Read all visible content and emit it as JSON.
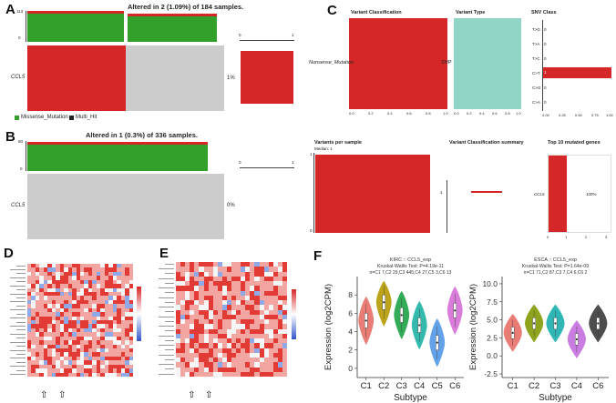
{
  "panels": {
    "A": {
      "letter": "A",
      "title": "Altered in 2 (1.09%) of 184 samples.",
      "ytick_top": "113",
      "ytick_bottom": "0",
      "gene": "CCL5",
      "pct": "1%",
      "scale_min": "0",
      "scale_max": "1",
      "legend": [
        {
          "label": "Missense_Mutation",
          "color": "#33a02c"
        },
        {
          "label": "Multi_Hit",
          "color": "#222222"
        }
      ]
    },
    "B": {
      "letter": "B",
      "title": "Altered in 1 (0.3%) of 336 samples.",
      "ytick_top": "80",
      "ytick_bottom": "0",
      "gene": "CCL5",
      "pct": "0%",
      "scale_min": "0",
      "scale_max": "1"
    },
    "C": {
      "letter": "C",
      "variant_classification": "Variant Classification",
      "variant_type": "Variant Type",
      "snv_class": "SNV Class",
      "row_label_1": "Nonsense_Mutation",
      "row_label_2": "SNP",
      "snv_labels": [
        "T>G",
        "T>A",
        "T>C",
        "C>T",
        "C>G",
        "C>A"
      ],
      "snv_values": [
        "0",
        "0",
        "0",
        "1",
        "0",
        "0"
      ],
      "x_ticks": [
        "0.0",
        "0.2",
        "0.4",
        "0.6",
        "0.8",
        "1.0"
      ],
      "snv_ticks": [
        "0.00",
        "0.25",
        "0.50",
        "0.75",
        "1.00"
      ],
      "variants_per_sample": "Variants per sample",
      "median": "Median: 1",
      "vc_summary": "Variant Classification summary",
      "top10": "Top 10 mutated genes",
      "top10_gene": "CCL5",
      "top10_value": "100%",
      "vps_y_top": "1",
      "vps_y_bottom": "0",
      "vcs_tick": "1",
      "top10_ticks": [
        "0",
        "1",
        "2",
        "3"
      ]
    },
    "D": {
      "letter": "D"
    },
    "E": {
      "letter": "E"
    },
    "F": {
      "letter": "F"
    }
  },
  "chart_data": [
    {
      "type": "violin",
      "title": "KIRC :: CCL5_exp",
      "subtitle": "Kruskal-Wallis Test: P=4.19e-11",
      "counts": "n=C1 7,C2 29,C3 445,C4 27,C5 3,C6 13",
      "xlabel": "Subtype",
      "ylabel": "Expression (log2CPM)",
      "categories": [
        "C1",
        "C2",
        "C3",
        "C4",
        "C5",
        "C6"
      ],
      "medians": [
        5.2,
        7.2,
        5.8,
        4.7,
        2.8,
        6.3
      ],
      "colors": [
        "#e8776e",
        "#b8a010",
        "#2aa84f",
        "#2ab7a8",
        "#5b9ee8",
        "#d977d9"
      ],
      "ylim": [
        -1,
        10
      ],
      "yticks": [
        "0",
        "2",
        "4",
        "6",
        "8"
      ]
    },
    {
      "type": "violin",
      "title": "ESCA :: CCL5_exp",
      "subtitle": "Kruskal-Wallis Test: P=1.64e-09",
      "counts": "n=C1 71,C2 87,C3 7,C4 6,C6 2",
      "xlabel": "Subtype",
      "ylabel": "Expression (log2CPM)",
      "categories": [
        "C1",
        "C2",
        "C3",
        "C4",
        "C6"
      ],
      "medians": [
        3.2,
        4.5,
        4.5,
        2.3,
        4.5
      ],
      "colors": [
        "#e8776e",
        "#8aa010",
        "#26b3b3",
        "#c877e0",
        "#444444"
      ],
      "ylim": [
        -3,
        11
      ],
      "yticks": [
        "-2.5",
        "0.0",
        "2.5",
        "5.0",
        "7.5",
        "10.0"
      ]
    }
  ]
}
